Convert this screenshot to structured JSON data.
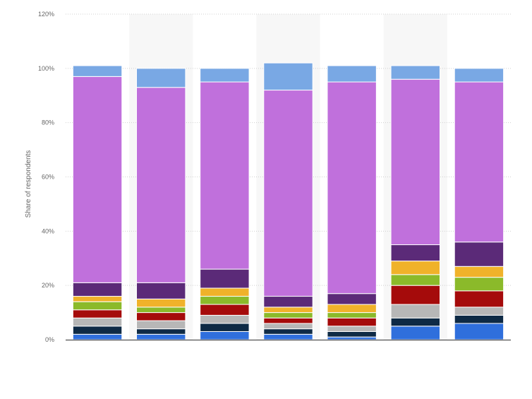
{
  "chart_data": {
    "type": "bar",
    "stacked": true,
    "xlabel": "",
    "ylabel": "Share of respondents",
    "ylim": [
      0,
      120
    ],
    "y_ticks": [
      0,
      20,
      40,
      60,
      80,
      100,
      120
    ],
    "y_tick_labels": [
      "0%",
      "20%",
      "40%",
      "60%",
      "80%",
      "100%",
      "120%"
    ],
    "grid": true,
    "categories": [
      "",
      "",
      "",
      "",
      "",
      "",
      ""
    ],
    "series": [
      {
        "color": "#2f6fdc",
        "values": [
          2,
          2,
          3,
          2,
          1,
          5,
          6
        ]
      },
      {
        "color": "#0e2a45",
        "values": [
          3,
          2,
          3,
          2,
          2,
          3,
          3
        ]
      },
      {
        "color": "#b7b7b7",
        "values": [
          3,
          3,
          3,
          2,
          2,
          5,
          3
        ]
      },
      {
        "color": "#a50b0b",
        "values": [
          3,
          3,
          4,
          2,
          3,
          7,
          6
        ]
      },
      {
        "color": "#8bba2a",
        "values": [
          3,
          2,
          3,
          2,
          2,
          4,
          5
        ]
      },
      {
        "color": "#f0b22a",
        "values": [
          2,
          3,
          3,
          2,
          3,
          5,
          4
        ]
      },
      {
        "color": "#5b2a78",
        "values": [
          5,
          6,
          7,
          4,
          4,
          6,
          9
        ]
      },
      {
        "color": "#c070dc",
        "values": [
          76,
          72,
          69,
          76,
          78,
          61,
          59
        ]
      },
      {
        "color": "#79a8e4",
        "values": [
          4,
          7,
          5,
          10,
          6,
          5,
          5
        ]
      }
    ]
  }
}
